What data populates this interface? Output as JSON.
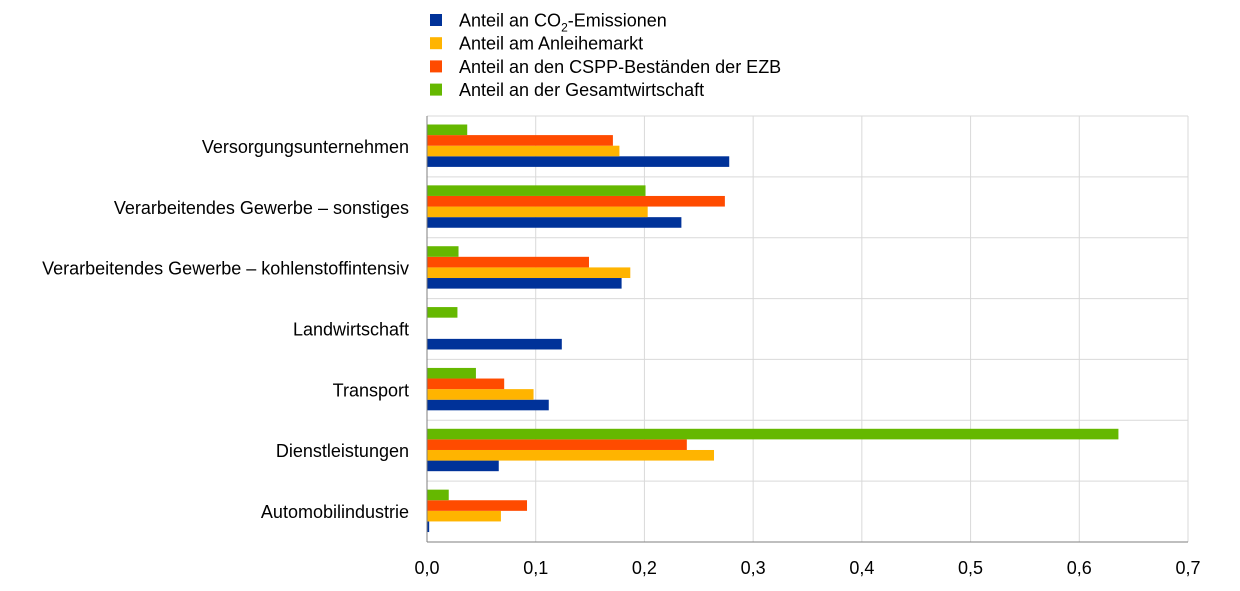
{
  "chart_data": {
    "type": "bar",
    "orientation": "horizontal",
    "categories": [
      "Versorgungsunternehmen",
      "Verarbeitendes Gewerbe – sonstiges",
      "Verarbeitendes Gewerbe – kohlenstoffintensiv",
      "Landwirtschaft",
      "Transport",
      "Dienstleistungen",
      "Automobilindustrie"
    ],
    "series": [
      {
        "name": "Anteil an CO2-Emissionen",
        "legend_prefix": "Anteil an CO",
        "legend_sub": "2",
        "legend_suffix": "-Emissionen",
        "color": "#003299",
        "values": [
          0.278,
          0.234,
          0.179,
          0.124,
          0.112,
          0.066,
          0.002
        ]
      },
      {
        "name": "Anteil am Anleihemarkt",
        "color": "#FFB400",
        "values": [
          0.177,
          0.203,
          0.187,
          0.0,
          0.098,
          0.264,
          0.068
        ]
      },
      {
        "name": "Anteil an den CSPP-Beständen der EZB",
        "color": "#FF4B00",
        "values": [
          0.171,
          0.274,
          0.149,
          0.0,
          0.071,
          0.239,
          0.092
        ]
      },
      {
        "name": "Anteil an der Gesamtwirtschaft",
        "color": "#65B800",
        "values": [
          0.037,
          0.201,
          0.029,
          0.028,
          0.045,
          0.636,
          0.02
        ]
      }
    ],
    "xlim": [
      0,
      0.7
    ],
    "xticks": [
      0,
      0.1,
      0.2,
      0.3,
      0.4,
      0.5,
      0.6,
      0.7
    ],
    "xtick_labels": [
      "0,0",
      "0,1",
      "0,2",
      "0,3",
      "0,4",
      "0,5",
      "0,6",
      "0,7"
    ],
    "grid": true,
    "legend_position": "top",
    "title": "",
    "xlabel": "",
    "ylabel": ""
  }
}
